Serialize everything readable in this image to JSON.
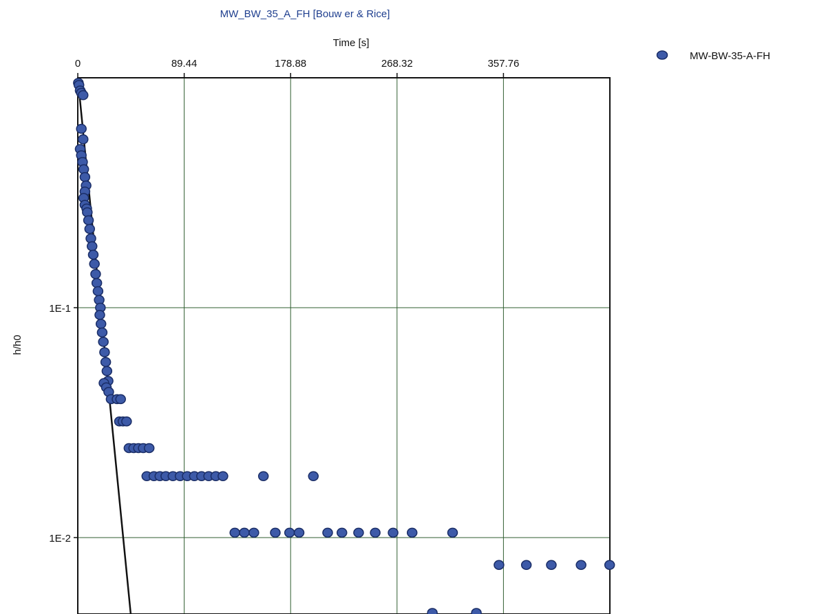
{
  "chart_data": {
    "type": "scatter",
    "title": "MW_BW_35_A_FH [Bouw er & Rice]",
    "xlabel": "Time [s]",
    "ylabel": "h/h0",
    "x_axis_position": "top",
    "xlim": [
      0,
      447.2
    ],
    "ylim": [
      0.00465,
      1.0
    ],
    "y_scale": "log",
    "x_ticks": [
      0,
      89.44,
      178.88,
      268.32,
      357.76
    ],
    "x_tick_labels": [
      "0",
      "89.44",
      "178.88",
      "268.32",
      "357.76"
    ],
    "y_ticks": [
      0.1,
      0.01
    ],
    "y_tick_labels": [
      "1E-1",
      "1E-2"
    ],
    "grid": true,
    "legend": "top-right",
    "series": [
      {
        "name": "MW-BW-35-A-FH",
        "color": "#3d5aa8",
        "points": [
          [
            0.5,
            0.95
          ],
          [
            1.0,
            0.93
          ],
          [
            2.0,
            0.88
          ],
          [
            3.0,
            0.86
          ],
          [
            4.5,
            0.84
          ],
          [
            3.0,
            0.6
          ],
          [
            4.5,
            0.54
          ],
          [
            2.0,
            0.49
          ],
          [
            3.0,
            0.46
          ],
          [
            4.0,
            0.43
          ],
          [
            5.0,
            0.4
          ],
          [
            6.0,
            0.37
          ],
          [
            7.0,
            0.34
          ],
          [
            6.0,
            0.32
          ],
          [
            5.0,
            0.3
          ],
          [
            6.0,
            0.28
          ],
          [
            7.5,
            0.27
          ],
          [
            8.0,
            0.26
          ],
          [
            9.0,
            0.24
          ],
          [
            10.0,
            0.22
          ],
          [
            11.0,
            0.2
          ],
          [
            12.0,
            0.185
          ],
          [
            13.0,
            0.17
          ],
          [
            14.0,
            0.155
          ],
          [
            15.0,
            0.14
          ],
          [
            16.0,
            0.128
          ],
          [
            17.0,
            0.118
          ],
          [
            18.0,
            0.108
          ],
          [
            19.0,
            0.1
          ],
          [
            18.5,
            0.093
          ],
          [
            19.5,
            0.085
          ],
          [
            20.5,
            0.078
          ],
          [
            21.5,
            0.071
          ],
          [
            22.5,
            0.064
          ],
          [
            23.5,
            0.058
          ],
          [
            24.5,
            0.053
          ],
          [
            25.5,
            0.048
          ],
          [
            22.0,
            0.047
          ],
          [
            24.0,
            0.045
          ],
          [
            26.0,
            0.043
          ],
          [
            28.0,
            0.04
          ],
          [
            33.0,
            0.04
          ],
          [
            36.0,
            0.04
          ],
          [
            35.0,
            0.032
          ],
          [
            38.0,
            0.032
          ],
          [
            41.0,
            0.032
          ],
          [
            43.0,
            0.0245
          ],
          [
            47.0,
            0.0245
          ],
          [
            51.0,
            0.0245
          ],
          [
            55.0,
            0.0245
          ],
          [
            60.0,
            0.0245
          ],
          [
            58.0,
            0.0185
          ],
          [
            64.0,
            0.0185
          ],
          [
            69.0,
            0.0185
          ],
          [
            74.0,
            0.0185
          ],
          [
            80.0,
            0.0185
          ],
          [
            86.0,
            0.0185
          ],
          [
            92.0,
            0.0185
          ],
          [
            98.0,
            0.0185
          ],
          [
            104.0,
            0.0185
          ],
          [
            110.0,
            0.0185
          ],
          [
            116.0,
            0.0185
          ],
          [
            122.0,
            0.0185
          ],
          [
            156.0,
            0.0185
          ],
          [
            198.0,
            0.0185
          ],
          [
            132.0,
            0.0105
          ],
          [
            140.0,
            0.0105
          ],
          [
            148.0,
            0.0105
          ],
          [
            166.0,
            0.0105
          ],
          [
            178.0,
            0.0105
          ],
          [
            186.0,
            0.0105
          ],
          [
            210.0,
            0.0105
          ],
          [
            222.0,
            0.0105
          ],
          [
            236.0,
            0.0105
          ],
          [
            250.0,
            0.0105
          ],
          [
            265.0,
            0.0105
          ],
          [
            281.0,
            0.0105
          ],
          [
            315.0,
            0.0105
          ],
          [
            354.0,
            0.0076
          ],
          [
            377.0,
            0.0076
          ],
          [
            398.0,
            0.0076
          ],
          [
            423.0,
            0.0076
          ],
          [
            447.0,
            0.0076
          ],
          [
            298.0,
            0.0047
          ],
          [
            335.0,
            0.0047
          ]
        ]
      }
    ],
    "fit_line": {
      "color": "#111111",
      "points": [
        [
          0,
          1.0
        ],
        [
          44.5,
          0.00465
        ]
      ]
    }
  }
}
